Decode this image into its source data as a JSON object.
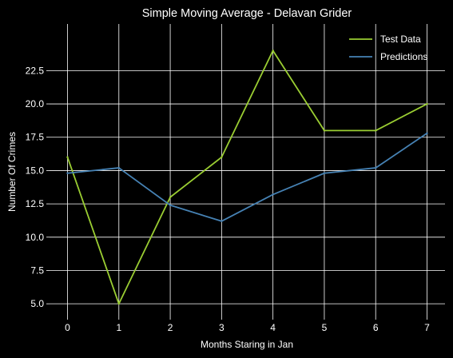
{
  "chart_data": {
    "type": "line",
    "title": "Simple Moving Average - Delavan Grider",
    "xlabel": "Months Staring in Jan",
    "ylabel": "Number Of Crimes",
    "x": [
      0,
      1,
      2,
      3,
      4,
      5,
      6,
      7
    ],
    "xlim": [
      -0.35,
      7.35
    ],
    "ylim": [
      4.05,
      26.0
    ],
    "xticks": [
      0,
      1,
      2,
      3,
      4,
      5,
      6,
      7
    ],
    "yticks": [
      5.0,
      7.5,
      10.0,
      12.5,
      15.0,
      17.5,
      20.0,
      22.5
    ],
    "ytick_labels": [
      "5.0",
      "7.5",
      "10.0",
      "12.5",
      "15.0",
      "17.5",
      "20.0",
      "22.5"
    ],
    "grid": true,
    "legend_position": "top-right",
    "series": [
      {
        "name": "Test Data",
        "color": "#9acd32",
        "values": [
          16,
          5,
          13,
          16,
          24,
          18,
          18,
          20
        ]
      },
      {
        "name": "Predictions",
        "color": "#4682b4",
        "values": [
          14.8,
          15.2,
          12.4,
          11.2,
          13.2,
          14.8,
          15.2,
          17.8
        ]
      }
    ]
  }
}
